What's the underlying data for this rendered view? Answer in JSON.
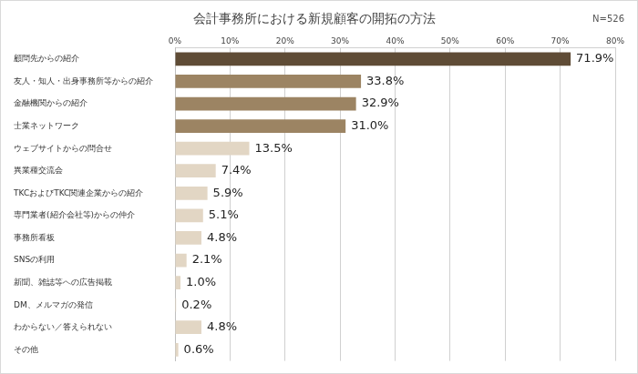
{
  "chart_data": {
    "type": "bar",
    "orientation": "horizontal",
    "title": "会計事務所における新規顧客の開拓の方法",
    "annotation": "N=526",
    "categories": [
      "顧問先からの紹介",
      "友人・知人・出身事務所等からの紹介",
      "金融機関からの紹介",
      "士業ネットワーク",
      "ウェブサイトからの問合せ",
      "異業種交流会",
      "TKCおよびTKC関連企業からの紹介",
      "専門業者(紹介会社等)からの仲介",
      "事務所看板",
      "SNSの利用",
      "新聞、雑誌等への広告掲載",
      "DM、メルマガの発信",
      "わからない／答えられない",
      "その他"
    ],
    "values": [
      71.9,
      33.8,
      32.9,
      31.0,
      13.5,
      7.4,
      5.9,
      5.1,
      4.8,
      2.1,
      1.0,
      0.2,
      4.8,
      0.6
    ],
    "value_labels": [
      "71.9%",
      "33.8%",
      "32.9%",
      "31.0%",
      "13.5%",
      "7.4%",
      "5.9%",
      "5.1%",
      "4.8%",
      "2.1%",
      "1.0%",
      "0.2%",
      "4.8%",
      "0.6%"
    ],
    "colors": [
      "#5f4c36",
      "#9c8463",
      "#9c8463",
      "#9c8463",
      "#e2d6c4",
      "#e2d6c4",
      "#e2d6c4",
      "#e2d6c4",
      "#e2d6c4",
      "#e2d6c4",
      "#e2d6c4",
      "#e2d6c4",
      "#e2d6c4",
      "#e2d6c4"
    ],
    "xlim": [
      0,
      80
    ],
    "xticks": [
      {
        "value": 0,
        "label": "0%"
      },
      {
        "value": 10,
        "label": "10%"
      },
      {
        "value": 20,
        "label": "20%"
      },
      {
        "value": 30,
        "label": "30%"
      },
      {
        "value": 40,
        "label": "40%"
      },
      {
        "value": 50,
        "label": "50%"
      },
      {
        "value": 60,
        "label": "60%"
      },
      {
        "value": 70,
        "label": "70%"
      },
      {
        "value": 80,
        "label": "80%"
      }
    ],
    "grid": true,
    "data_labels": true
  }
}
